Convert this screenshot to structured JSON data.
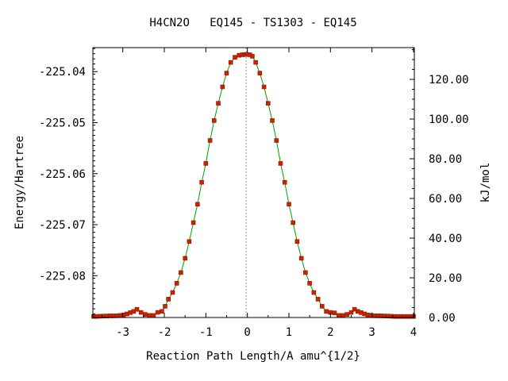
{
  "chart_data": {
    "type": "line",
    "title": "H4CN2O   EQ145 - TS1303 - EQ145",
    "xlabel": "Reaction Path Length/A amu^{1/2}",
    "ylabel": "Energy/Hartree",
    "y2label": "kJ/mol",
    "xlim": [
      -3.72,
      4.02
    ],
    "ylim": [
      -225.0882,
      -225.0353
    ],
    "y2lim": [
      0,
      136.0
    ],
    "x_ticks": [
      -3,
      -2,
      -1,
      0,
      1,
      2,
      3,
      4
    ],
    "x_tick_labels": [
      "-3",
      "-2",
      "-1",
      "0",
      "1",
      "2",
      "3",
      "4"
    ],
    "y_ticks": [
      -225.04,
      -225.05,
      -225.06,
      -225.07,
      -225.08
    ],
    "y_tick_labels": [
      "-225.04",
      "-225.05",
      "-225.06",
      "-225.07",
      "-225.08"
    ],
    "y2_ticks": [
      0,
      20,
      40,
      60,
      80,
      100,
      120
    ],
    "y2_tick_labels": [
      "0.00",
      "20.00",
      "40.00",
      "60.00",
      "80.00",
      "100.00",
      "120.00"
    ],
    "ts_marker_x": -0.03,
    "colors": {
      "line": "#00a000",
      "marker": "#cc2200",
      "marker_edge": "#8b1a00",
      "ts_line": "#999999"
    },
    "series": [
      {
        "x": [
          -3.7,
          -3.62,
          -3.54,
          -3.46,
          -3.38,
          -3.3,
          -3.22,
          -3.14,
          -3.06,
          -2.98,
          -2.9,
          -2.82,
          -2.74,
          -2.66,
          -2.56,
          -2.46,
          -2.36,
          -2.26,
          -2.16,
          -2.06,
          -1.98,
          -1.9,
          -1.8,
          -1.7,
          -1.6,
          -1.5,
          -1.4,
          -1.3,
          -1.2,
          -1.1,
          -1.0,
          -0.9,
          -0.8,
          -0.7,
          -0.6,
          -0.5,
          -0.4,
          -0.3,
          -0.2,
          -0.12,
          -0.06,
          -0.03,
          0.0,
          0.06,
          0.12,
          0.2,
          0.3,
          0.4,
          0.5,
          0.6,
          0.7,
          0.8,
          0.9,
          1.0,
          1.1,
          1.2,
          1.3,
          1.4,
          1.5,
          1.6,
          1.7,
          1.8,
          1.9,
          2.0,
          2.1,
          2.2,
          2.3,
          2.4,
          2.5,
          2.58,
          2.66,
          2.74,
          2.82,
          2.9,
          2.98,
          3.06,
          3.14,
          3.22,
          3.3,
          3.38,
          3.46,
          3.54,
          3.62,
          3.7,
          3.78,
          3.86,
          3.94,
          4.0
        ],
        "y": [
          -225.088,
          -225.08798,
          -225.08795,
          -225.08792,
          -225.0879,
          -225.08788,
          -225.08787,
          -225.08785,
          -225.0878,
          -225.0877,
          -225.0875,
          -225.08725,
          -225.087,
          -225.0866,
          -225.0872,
          -225.0876,
          -225.0878,
          -225.0878,
          -225.0872,
          -225.087,
          -225.086,
          -225.0846,
          -225.0833,
          -225.0815,
          -225.0794,
          -225.0766,
          -225.0733,
          -225.0696,
          -225.066,
          -225.0617,
          -225.058,
          -225.0535,
          -225.0496,
          -225.0462,
          -225.043,
          -225.0403,
          -225.0382,
          -225.0372,
          -225.0368,
          -225.0367,
          -225.03665,
          -225.03665,
          -225.03665,
          -225.0367,
          -225.037,
          -225.0382,
          -225.0403,
          -225.043,
          -225.0462,
          -225.0496,
          -225.0535,
          -225.058,
          -225.0617,
          -225.066,
          -225.0696,
          -225.0733,
          -225.0766,
          -225.0794,
          -225.0815,
          -225.0833,
          -225.0846,
          -225.086,
          -225.087,
          -225.0872,
          -225.0873,
          -225.0878,
          -225.0878,
          -225.0876,
          -225.0872,
          -225.0866,
          -225.087,
          -225.08725,
          -225.0875,
          -225.0877,
          -225.0878,
          -225.08785,
          -225.08787,
          -225.08788,
          -225.0879,
          -225.08792,
          -225.08795,
          -225.08798,
          -225.088,
          -225.088,
          -225.088,
          -225.088,
          -225.088,
          -225.088
        ]
      }
    ]
  }
}
